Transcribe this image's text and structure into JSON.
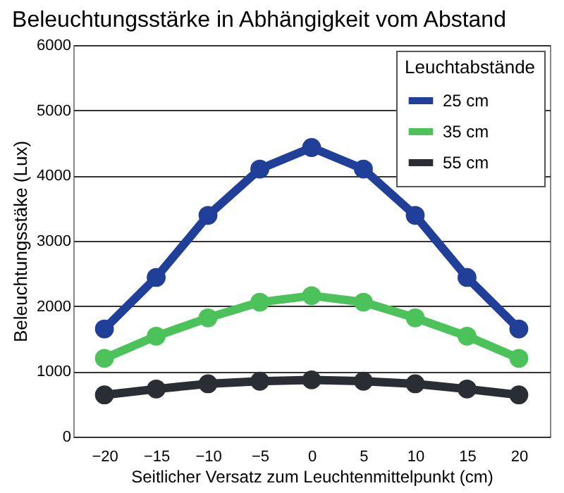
{
  "chart_data": {
    "type": "line",
    "title": "Beleuchtungsstärke in Abhängigkeit vom Abstand",
    "xlabel": "Seitlicher Versatz zum Leuchtenmittelpunkt (cm)",
    "ylabel": "Beleuchtungsstäke (Lux)",
    "legend_title": "Leuchtabstände",
    "x": [
      -20,
      -15,
      -10,
      -5,
      0,
      5,
      10,
      15,
      20
    ],
    "series": [
      {
        "name": "25 cm",
        "color": "#1f3f99",
        "values": [
          1650,
          2440,
          3390,
          4100,
          4430,
          4100,
          3390,
          2440,
          1650
        ]
      },
      {
        "name": "35 cm",
        "color": "#4cc35a",
        "values": [
          1200,
          1540,
          1820,
          2060,
          2160,
          2060,
          1820,
          1540,
          1200
        ]
      },
      {
        "name": "55 cm",
        "color": "#2a2d33",
        "values": [
          640,
          730,
          810,
          850,
          870,
          850,
          810,
          730,
          640
        ]
      }
    ],
    "xlim": [
      -23,
      23
    ],
    "xticks": [
      -20,
      -15,
      -10,
      -5,
      0,
      5,
      10,
      15,
      20
    ],
    "ylim": [
      0,
      6000
    ],
    "yticks": [
      0,
      1000,
      2000,
      3000,
      4000,
      5000,
      6000
    ],
    "grid": "y",
    "legend": "top right",
    "marker": "circle",
    "line_style": "solid"
  }
}
